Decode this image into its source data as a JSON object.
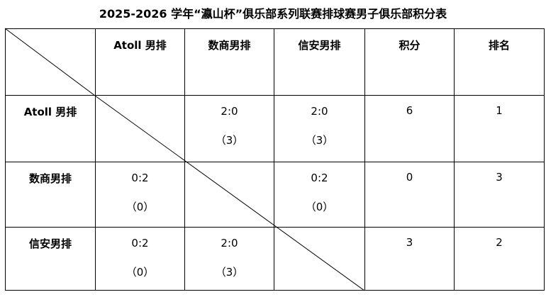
{
  "title": "2025-2026 学年“瀛山杯”俱乐部系列联赛排球赛男子俱乐部积分表",
  "headers": [
    "Atoll 男排",
    "数商男排",
    "信安男排",
    "积分",
    "排名"
  ],
  "rows": [
    {
      "team": "Atoll 男排",
      "cells": [
        null,
        {
          "score": "2:0",
          "pts": "（3）"
        },
        {
          "score": "2:0",
          "pts": "（3）"
        }
      ],
      "points": "6",
      "rank": "1"
    },
    {
      "team": "数商男排",
      "cells": [
        {
          "score": "0:2",
          "pts": "（0）"
        },
        null,
        {
          "score": "0:2",
          "pts": "（0）"
        }
      ],
      "points": "0",
      "rank": "3"
    },
    {
      "team": "信安男排",
      "cells": [
        {
          "score": "0:2",
          "pts": "（0）"
        },
        {
          "score": "2:0",
          "pts": "（3）"
        },
        null
      ],
      "points": "3",
      "rank": "2"
    }
  ]
}
